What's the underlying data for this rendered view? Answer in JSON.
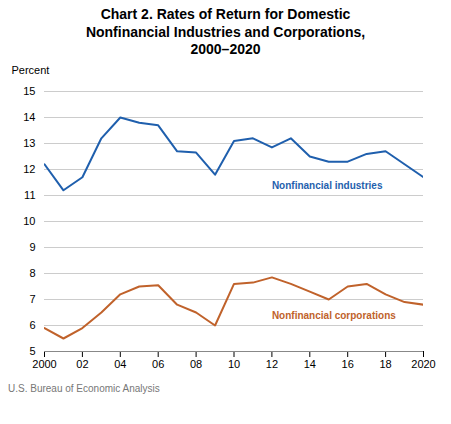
{
  "chart_data": {
    "type": "line",
    "title": "Chart 2. Rates of Return for Domestic\nNonfinancial Industries and Corporations,\n2000–2020",
    "ylabel": "Percent",
    "source": "U.S. Bureau of Economic Analysis",
    "x": [
      2000,
      2001,
      2002,
      2003,
      2004,
      2005,
      2006,
      2007,
      2008,
      2009,
      2010,
      2011,
      2012,
      2013,
      2014,
      2015,
      2016,
      2017,
      2018,
      2019,
      2020
    ],
    "series": [
      {
        "name": "Nonfinancial industries",
        "color": "#1F5FAD",
        "values": [
          12.2,
          11.2,
          11.7,
          13.2,
          14.0,
          13.8,
          13.7,
          12.7,
          12.65,
          11.8,
          13.1,
          13.2,
          12.85,
          13.2,
          12.5,
          12.3,
          12.3,
          12.6,
          12.7,
          12.2,
          11.7
        ]
      },
      {
        "name": "Nonfinancial corporations",
        "color": "#C0622B",
        "values": [
          5.9,
          5.5,
          5.9,
          6.5,
          7.2,
          7.5,
          7.55,
          6.8,
          6.5,
          6.0,
          7.6,
          7.65,
          7.85,
          7.6,
          7.3,
          7.0,
          7.5,
          7.6,
          7.2,
          6.9,
          6.8
        ]
      }
    ],
    "xlim": [
      2000,
      2020
    ],
    "xticks": [
      2000,
      {
        "value": 2002,
        "label": "02"
      },
      {
        "value": 2004,
        "label": "04"
      },
      {
        "value": 2006,
        "label": "06"
      },
      {
        "value": 2008,
        "label": "08"
      },
      {
        "value": 2010,
        "label": "10"
      },
      {
        "value": 2012,
        "label": "12"
      },
      {
        "value": 2014,
        "label": "14"
      },
      {
        "value": 2016,
        "label": "16"
      },
      {
        "value": 2018,
        "label": "18"
      },
      2020
    ],
    "ylim": [
      5,
      15
    ],
    "yticks": [
      5,
      6,
      7,
      8,
      9,
      10,
      11,
      12,
      13,
      14,
      15
    ],
    "grid": true
  }
}
